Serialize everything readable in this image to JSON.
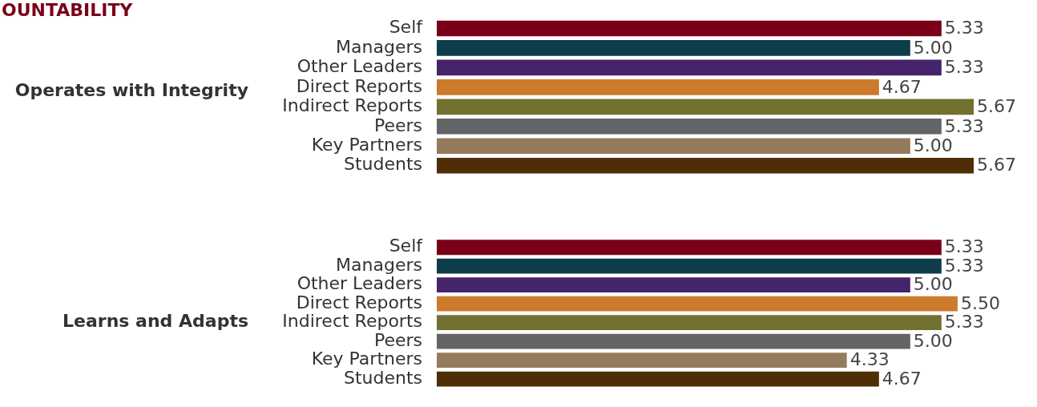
{
  "chart_data": [
    {
      "type": "other",
      "title": "OUNTABILITY"
    },
    {
      "type": "bar",
      "orientation": "horizontal",
      "ylabel": "Operates with Integrity",
      "categories": [
        "Self",
        "Managers",
        "Other Leaders",
        "Direct Reports",
        "Indirect Reports",
        "Peers",
        "Key Partners",
        "Students"
      ],
      "values": [
        5.33,
        5.0,
        5.33,
        4.67,
        5.67,
        5.33,
        5.0,
        5.67
      ],
      "value_labels": [
        "5.33",
        "5.00",
        "5.33",
        "4.67",
        "5.67",
        "5.33",
        "5.00",
        "5.67"
      ],
      "colors": [
        "#7a0019",
        "#0d3d4a",
        "#45246b",
        "#cc7a2b",
        "#737130",
        "#636466",
        "#947b5b",
        "#4f2d05"
      ],
      "tick_labels": "y"
    },
    {
      "type": "bar",
      "orientation": "horizontal",
      "ylabel": "Learns and Adapts",
      "categories": [
        "Self",
        "Managers",
        "Other Leaders",
        "Direct Reports",
        "Indirect Reports",
        "Peers",
        "Key Partners",
        "Students"
      ],
      "values": [
        5.33,
        5.33,
        5.0,
        5.5,
        5.33,
        5.0,
        4.33,
        4.67
      ],
      "value_labels": [
        "5.33",
        "5.33",
        "5.00",
        "5.50",
        "5.33",
        "5.00",
        "4.33",
        "4.67"
      ],
      "colors": [
        "#7a0019",
        "#0d3d4a",
        "#45246b",
        "#cc7a2b",
        "#737130",
        "#636466",
        "#947b5b",
        "#4f2d05"
      ],
      "tick_labels": "y"
    }
  ]
}
